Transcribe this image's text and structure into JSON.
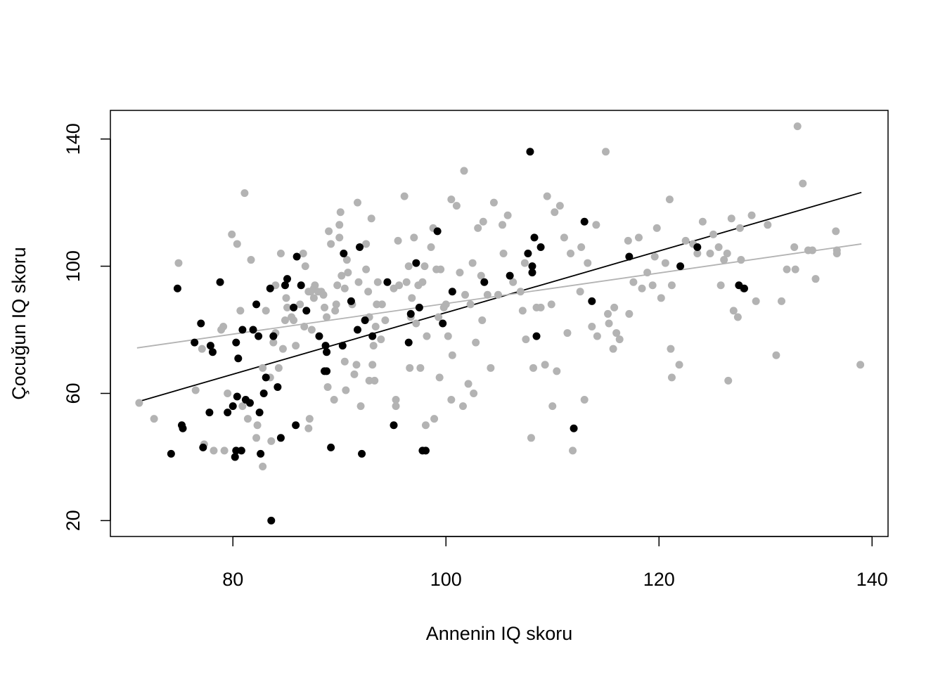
{
  "chart_data": {
    "type": "scatter",
    "title": "",
    "xlabel": "Annenin IQ skoru",
    "ylabel": "Çocuğun IQ skoru",
    "xlim": [
      68.5,
      141.5
    ],
    "ylim": [
      15,
      149
    ],
    "xticks": [
      80,
      100,
      120,
      140
    ],
    "yticks": [
      20,
      60,
      100,
      140
    ],
    "grid": false,
    "legend": "none",
    "colors": {
      "group_black": "#000000",
      "group_gray": "#b3b3b3"
    },
    "series": [
      {
        "color": "#000000",
        "points": [
          [
            74.2,
            41
          ],
          [
            74.8,
            93
          ],
          [
            75.2,
            50
          ],
          [
            75.3,
            49
          ],
          [
            76.4,
            76
          ],
          [
            77.0,
            82
          ],
          [
            77.2,
            43
          ],
          [
            77.8,
            54
          ],
          [
            77.9,
            75
          ],
          [
            78.1,
            73
          ],
          [
            78.8,
            95
          ],
          [
            79.5,
            54
          ],
          [
            80.0,
            56
          ],
          [
            80.3,
            76
          ],
          [
            80.4,
            59
          ],
          [
            80.5,
            71
          ],
          [
            80.2,
            40
          ],
          [
            80.3,
            42
          ],
          [
            80.8,
            42
          ],
          [
            80.9,
            80
          ],
          [
            81.2,
            58
          ],
          [
            81.6,
            57
          ],
          [
            81.9,
            80
          ],
          [
            82.2,
            88
          ],
          [
            82.4,
            78
          ],
          [
            82.5,
            54
          ],
          [
            82.6,
            41
          ],
          [
            82.9,
            60
          ],
          [
            83.1,
            65
          ],
          [
            83.5,
            93
          ],
          [
            83.6,
            20
          ],
          [
            83.8,
            78
          ],
          [
            84.2,
            62
          ],
          [
            84.5,
            46
          ],
          [
            84.9,
            94
          ],
          [
            85.1,
            96
          ],
          [
            85.7,
            87
          ],
          [
            85.9,
            50
          ],
          [
            86.0,
            103
          ],
          [
            86.4,
            94
          ],
          [
            86.9,
            86
          ],
          [
            88.1,
            78
          ],
          [
            88.6,
            67
          ],
          [
            88.7,
            75
          ],
          [
            88.8,
            67
          ],
          [
            88.8,
            73
          ],
          [
            89.2,
            43
          ],
          [
            90.3,
            75
          ],
          [
            90.4,
            104
          ],
          [
            91.1,
            89
          ],
          [
            91.7,
            80
          ],
          [
            91.9,
            106
          ],
          [
            92.1,
            41
          ],
          [
            92.4,
            83
          ],
          [
            93.1,
            78
          ],
          [
            94.5,
            95
          ],
          [
            95.1,
            50
          ],
          [
            96.5,
            76
          ],
          [
            96.7,
            85
          ],
          [
            97.2,
            101
          ],
          [
            97.5,
            87
          ],
          [
            97.8,
            42
          ],
          [
            98.1,
            42
          ],
          [
            99.2,
            111
          ],
          [
            99.7,
            82
          ],
          [
            100.6,
            92
          ],
          [
            103.6,
            95
          ],
          [
            106.0,
            97
          ],
          [
            107.7,
            104
          ],
          [
            107.9,
            136
          ],
          [
            108.1,
            100
          ],
          [
            108.1,
            98
          ],
          [
            108.3,
            109
          ],
          [
            108.5,
            78
          ],
          [
            108.9,
            106
          ],
          [
            112.0,
            49
          ],
          [
            113.0,
            114
          ],
          [
            113.7,
            89
          ],
          [
            117.2,
            103
          ],
          [
            122.0,
            100
          ],
          [
            123.6,
            106
          ],
          [
            127.5,
            94
          ],
          [
            128.0,
            93
          ]
        ]
      },
      {
        "color": "#b3b3b3",
        "points": [
          [
            71.2,
            57
          ],
          [
            72.6,
            52
          ],
          [
            74.9,
            101
          ],
          [
            76.5,
            61
          ],
          [
            77.1,
            74
          ],
          [
            77.3,
            44
          ],
          [
            78.2,
            42
          ],
          [
            78.9,
            80
          ],
          [
            79.1,
            81
          ],
          [
            79.2,
            42
          ],
          [
            79.5,
            60
          ],
          [
            79.9,
            110
          ],
          [
            80.4,
            107
          ],
          [
            80.7,
            86
          ],
          [
            80.9,
            56
          ],
          [
            81.1,
            123
          ],
          [
            81.4,
            52
          ],
          [
            81.7,
            102
          ],
          [
            82.2,
            46
          ],
          [
            82.3,
            50
          ],
          [
            82.8,
            37
          ],
          [
            82.8,
            68
          ],
          [
            83.1,
            86
          ],
          [
            83.5,
            65
          ],
          [
            83.6,
            45
          ],
          [
            83.8,
            76
          ],
          [
            84.0,
            79
          ],
          [
            84.0,
            94
          ],
          [
            84.3,
            68
          ],
          [
            84.5,
            104
          ],
          [
            84.7,
            74
          ],
          [
            84.9,
            83
          ],
          [
            85.0,
            90
          ],
          [
            85.1,
            87
          ],
          [
            85.5,
            84
          ],
          [
            85.7,
            83
          ],
          [
            85.9,
            75
          ],
          [
            86.3,
            88
          ],
          [
            86.6,
            104
          ],
          [
            86.7,
            81
          ],
          [
            86.8,
            100
          ],
          [
            87.1,
            92
          ],
          [
            87.3,
            92
          ],
          [
            87.4,
            80
          ],
          [
            87.6,
            93
          ],
          [
            87.7,
            94
          ],
          [
            87.1,
            49
          ],
          [
            87.2,
            52
          ],
          [
            87.6,
            90
          ],
          [
            88.0,
            92
          ],
          [
            88.3,
            92
          ],
          [
            88.5,
            91
          ],
          [
            88.6,
            87
          ],
          [
            88.8,
            84
          ],
          [
            88.9,
            62
          ],
          [
            89.0,
            111
          ],
          [
            89.2,
            107
          ],
          [
            89.5,
            58
          ],
          [
            89.6,
            86
          ],
          [
            89.7,
            88
          ],
          [
            89.8,
            94
          ],
          [
            90.0,
            109
          ],
          [
            90.0,
            113
          ],
          [
            90.1,
            117
          ],
          [
            90.2,
            97
          ],
          [
            90.5,
            93
          ],
          [
            90.5,
            70
          ],
          [
            90.6,
            61
          ],
          [
            90.7,
            102
          ],
          [
            90.8,
            98
          ],
          [
            91.2,
            88
          ],
          [
            91.4,
            66
          ],
          [
            91.6,
            69
          ],
          [
            91.7,
            120
          ],
          [
            91.8,
            95
          ],
          [
            92.0,
            56
          ],
          [
            92.5,
            107
          ],
          [
            92.5,
            99
          ],
          [
            92.7,
            92
          ],
          [
            92.8,
            64
          ],
          [
            92.8,
            84
          ],
          [
            93.0,
            115
          ],
          [
            93.1,
            69
          ],
          [
            93.2,
            75
          ],
          [
            93.3,
            64
          ],
          [
            93.4,
            81
          ],
          [
            93.5,
            88
          ],
          [
            93.6,
            95
          ],
          [
            93.9,
            77
          ],
          [
            94.0,
            88
          ],
          [
            94.3,
            83
          ],
          [
            95.1,
            93
          ],
          [
            95.3,
            56
          ],
          [
            95.3,
            58
          ],
          [
            95.5,
            108
          ],
          [
            95.6,
            94
          ],
          [
            96.1,
            122
          ],
          [
            96.3,
            95
          ],
          [
            96.5,
            100
          ],
          [
            96.6,
            68
          ],
          [
            96.7,
            84
          ],
          [
            96.8,
            90
          ],
          [
            97.0,
            109
          ],
          [
            97.2,
            82
          ],
          [
            97.4,
            94
          ],
          [
            97.6,
            68
          ],
          [
            97.8,
            95
          ],
          [
            98.0,
            100
          ],
          [
            98.1,
            50
          ],
          [
            98.2,
            78
          ],
          [
            98.6,
            106
          ],
          [
            98.8,
            112
          ],
          [
            98.9,
            52
          ],
          [
            99.1,
            99
          ],
          [
            99.3,
            84
          ],
          [
            99.4,
            65
          ],
          [
            99.5,
            99
          ],
          [
            99.8,
            87
          ],
          [
            100.0,
            88
          ],
          [
            100.2,
            78
          ],
          [
            100.5,
            121
          ],
          [
            100.5,
            58
          ],
          [
            100.6,
            72
          ],
          [
            101.0,
            119
          ],
          [
            101.3,
            98
          ],
          [
            101.6,
            56
          ],
          [
            101.7,
            130
          ],
          [
            101.8,
            91
          ],
          [
            102.1,
            63
          ],
          [
            102.3,
            88
          ],
          [
            102.5,
            101
          ],
          [
            102.6,
            60
          ],
          [
            102.8,
            76
          ],
          [
            103.0,
            112
          ],
          [
            103.3,
            97
          ],
          [
            103.4,
            83
          ],
          [
            103.5,
            114
          ],
          [
            103.9,
            91
          ],
          [
            104.2,
            68
          ],
          [
            104.5,
            120
          ],
          [
            104.9,
            91
          ],
          [
            105.3,
            113
          ],
          [
            105.4,
            104
          ],
          [
            105.8,
            116
          ],
          [
            106.3,
            95
          ],
          [
            107.0,
            92
          ],
          [
            107.2,
            86
          ],
          [
            107.4,
            101
          ],
          [
            107.5,
            77
          ],
          [
            108.0,
            46
          ],
          [
            108.2,
            68
          ],
          [
            108.5,
            87
          ],
          [
            108.9,
            87
          ],
          [
            109.3,
            69
          ],
          [
            109.5,
            122
          ],
          [
            109.9,
            88
          ],
          [
            110.0,
            56
          ],
          [
            110.2,
            117
          ],
          [
            110.4,
            67
          ],
          [
            110.7,
            119
          ],
          [
            111.1,
            109
          ],
          [
            111.4,
            79
          ],
          [
            111.7,
            104
          ],
          [
            111.9,
            42
          ],
          [
            112.6,
            92
          ],
          [
            112.7,
            106
          ],
          [
            113.0,
            58
          ],
          [
            113.3,
            101
          ],
          [
            113.7,
            81
          ],
          [
            114.1,
            113
          ],
          [
            114.2,
            78
          ],
          [
            115.0,
            136
          ],
          [
            115.2,
            85
          ],
          [
            115.3,
            82
          ],
          [
            115.7,
            74
          ],
          [
            115.8,
            87
          ],
          [
            116.0,
            79
          ],
          [
            116.3,
            77
          ],
          [
            117.1,
            108
          ],
          [
            117.2,
            85
          ],
          [
            117.6,
            95
          ],
          [
            118.1,
            109
          ],
          [
            118.4,
            93
          ],
          [
            118.9,
            98
          ],
          [
            119.4,
            94
          ],
          [
            119.6,
            103
          ],
          [
            119.8,
            112
          ],
          [
            120.2,
            90
          ],
          [
            120.6,
            101
          ],
          [
            121.0,
            121
          ],
          [
            121.1,
            74
          ],
          [
            121.2,
            65
          ],
          [
            121.2,
            94
          ],
          [
            121.9,
            69
          ],
          [
            122.5,
            108
          ],
          [
            123.2,
            107
          ],
          [
            123.6,
            104
          ],
          [
            124.1,
            114
          ],
          [
            124.8,
            104
          ],
          [
            125.1,
            110
          ],
          [
            125.6,
            106
          ],
          [
            125.8,
            94
          ],
          [
            126.1,
            102
          ],
          [
            126.4,
            104
          ],
          [
            126.5,
            64
          ],
          [
            126.8,
            115
          ],
          [
            127.0,
            86
          ],
          [
            127.4,
            84
          ],
          [
            127.6,
            112
          ],
          [
            127.7,
            102
          ],
          [
            127.9,
            93
          ],
          [
            128.7,
            116
          ],
          [
            129.1,
            89
          ],
          [
            130.2,
            113
          ],
          [
            131.0,
            72
          ],
          [
            131.5,
            89
          ],
          [
            132.0,
            99
          ],
          [
            132.7,
            106
          ],
          [
            132.8,
            99
          ],
          [
            133.0,
            144
          ],
          [
            133.5,
            126
          ],
          [
            134.0,
            105
          ],
          [
            134.4,
            105
          ],
          [
            134.7,
            96
          ],
          [
            136.6,
            111
          ],
          [
            136.7,
            105
          ],
          [
            136.7,
            104
          ],
          [
            138.9,
            69
          ]
        ]
      }
    ],
    "fit_lines": [
      {
        "color": "#000000",
        "x": [
          71,
          139
        ],
        "y": [
          57.3,
          123.2
        ]
      },
      {
        "color": "#b3b3b3",
        "x": [
          71,
          139
        ],
        "y": [
          74.3,
          107.0
        ]
      }
    ]
  }
}
